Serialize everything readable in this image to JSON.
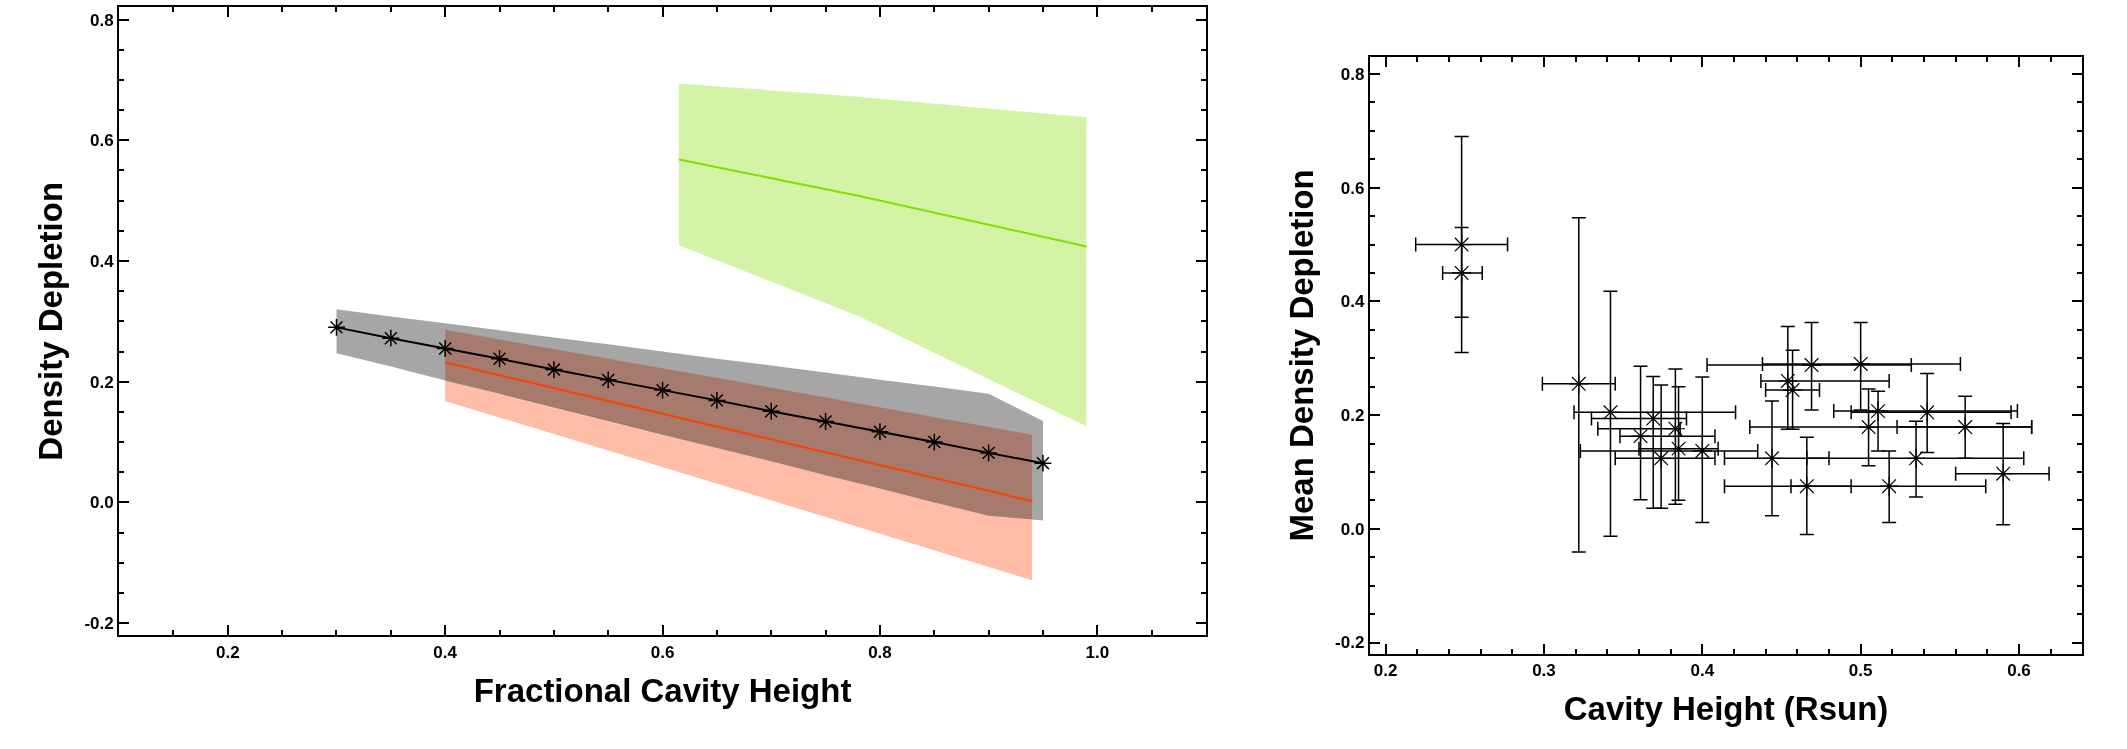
{
  "chart_data": [
    {
      "type": "line",
      "xlabel": "Fractional Cavity Height",
      "ylabel": "Density Depletion",
      "xlim": [
        0.1,
        1.1
      ],
      "xticks": [
        0.2,
        0.4,
        0.6,
        0.8,
        {
          "value": 1.0,
          "label": "1.0"
        }
      ],
      "ylim": [
        -0.22,
        0.82
      ],
      "yticks": [
        -0.2,
        {
          "value": 0.0,
          "label": "0.0"
        },
        0.2,
        0.4,
        0.6,
        0.8
      ],
      "series": [
        {
          "color": "#80e000",
          "x": [
            0.615,
            0.78,
            0.99
          ],
          "values": [
            0.568,
            0.508,
            0.424
          ],
          "lower": [
            0.426,
            0.309,
            0.126
          ],
          "upper": [
            0.694,
            0.672,
            0.638
          ]
        },
        {
          "color": "#ff4000",
          "x": [
            0.4,
            0.67,
            0.94
          ],
          "values": [
            0.232,
            0.117,
            0.002
          ],
          "lower": [
            0.168,
            0.02,
            -0.129
          ],
          "upper": [
            0.286,
            0.2,
            0.112
          ]
        },
        {
          "color": "#000000",
          "marker": "cross",
          "x": [
            0.3,
            0.35,
            0.4,
            0.45,
            0.5,
            0.55,
            0.6,
            0.65,
            0.7,
            0.75,
            0.8,
            0.85,
            0.9,
            0.95
          ],
          "values": [
            0.29,
            0.272,
            0.255,
            0.238,
            0.22,
            0.203,
            0.186,
            0.169,
            0.151,
            0.134,
            0.117,
            0.1,
            0.082,
            0.065
          ],
          "lower": [
            0.247,
            0.225,
            0.202,
            0.18,
            0.157,
            0.135,
            0.112,
            0.09,
            0.068,
            0.045,
            0.023,
            0.0,
            -0.022,
            -0.03
          ],
          "upper": [
            0.32,
            0.308,
            0.297,
            0.285,
            0.273,
            0.262,
            0.25,
            0.238,
            0.227,
            0.215,
            0.203,
            0.192,
            0.18,
            0.135
          ]
        }
      ]
    },
    {
      "type": "scatter",
      "xlabel": "Cavity Height (Rsun)",
      "ylabel": "Mean Density Depletion",
      "xlim": [
        0.19,
        0.64
      ],
      "xticks": [
        0.2,
        0.3,
        0.4,
        0.5,
        0.6
      ],
      "ylim": [
        -0.22,
        0.83
      ],
      "yticks": [
        -0.2,
        {
          "value": 0.0,
          "label": "0.0"
        },
        0.2,
        0.4,
        0.6,
        0.8
      ],
      "marker": "cross",
      "color": "#000000",
      "x": [
        0.248,
        0.248,
        0.322,
        0.342,
        0.361,
        0.369,
        0.374,
        0.383,
        0.385,
        0.4,
        0.444,
        0.454,
        0.457,
        0.466,
        0.469,
        0.5,
        0.505,
        0.511,
        0.518,
        0.535,
        0.542,
        0.566,
        0.59
      ],
      "values": [
        0.5,
        0.45,
        0.255,
        0.205,
        0.163,
        0.194,
        0.124,
        0.176,
        0.141,
        0.137,
        0.124,
        0.26,
        0.244,
        0.075,
        0.288,
        0.29,
        0.179,
        0.207,
        0.075,
        0.124,
        0.205,
        0.179,
        0.097
      ],
      "errors": [
        [
          0.31,
          0.69
        ],
        [
          0.372,
          0.53
        ],
        [
          -0.041,
          0.547
        ],
        [
          -0.013,
          0.418
        ],
        [
          0.051,
          0.286
        ],
        [
          0.036,
          0.268
        ],
        [
          0.036,
          0.253
        ],
        [
          0.043,
          0.281
        ],
        [
          0.05,
          0.25
        ],
        [
          0.011,
          0.267
        ],
        [
          0.023,
          0.225
        ],
        [
          0.175,
          0.356
        ],
        [
          0.175,
          0.314
        ],
        [
          -0.01,
          0.161
        ],
        [
          0.209,
          0.363
        ],
        [
          0.209,
          0.363
        ],
        [
          0.111,
          0.246
        ],
        [
          0.137,
          0.242
        ],
        [
          0.011,
          0.137
        ],
        [
          0.056,
          0.189
        ],
        [
          0.134,
          0.273
        ],
        [
          0.124,
          0.233
        ],
        [
          0.007,
          0.185
        ]
      ],
      "xerrors": [
        [
          0.219,
          0.277
        ],
        [
          0.236,
          0.261
        ],
        [
          0.299,
          0.345
        ],
        [
          0.319,
          0.421
        ],
        [
          0.348,
          0.408
        ],
        [
          0.33,
          0.39
        ],
        [
          0.345,
          0.408
        ],
        [
          0.334,
          0.386
        ],
        [
          0.36,
          0.41
        ],
        [
          0.323,
          0.435
        ],
        [
          0.414,
          0.48
        ],
        [
          0.437,
          0.518
        ],
        [
          0.44,
          0.474
        ],
        [
          0.414,
          0.494
        ],
        [
          0.403,
          0.532
        ],
        [
          0.438,
          0.563
        ],
        [
          0.43,
          0.608
        ],
        [
          0.483,
          0.599
        ],
        [
          0.456,
          0.579
        ],
        [
          0.466,
          0.603
        ],
        [
          0.494,
          0.595
        ],
        [
          0.523,
          0.608
        ],
        [
          0.56,
          0.619
        ]
      ]
    }
  ]
}
